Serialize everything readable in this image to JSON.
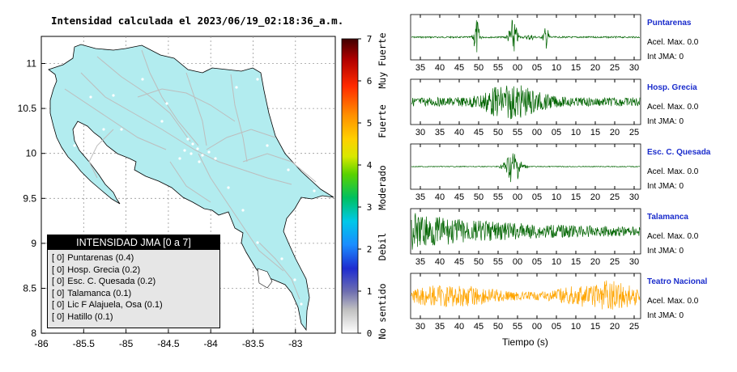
{
  "map": {
    "title": "Intensidad calculada el 2023/06/19_02:18:36_a.m.",
    "x_ticks": [
      "-86",
      "-85.5",
      "-85",
      "-84.5",
      "-84",
      "-83.5",
      "-83"
    ],
    "y_ticks": [
      "11",
      "10.5",
      "10",
      "9.5",
      "9",
      "8.5",
      "8"
    ],
    "colors": {
      "land": "#b2ecef",
      "roads": "#bdbdbd",
      "border": "#000000"
    }
  },
  "legend": {
    "title": "INTENSIDAD JMA [0 a 7]",
    "items": [
      {
        "level": "[ 0]",
        "label": "Puntarenas (0.4)"
      },
      {
        "level": "[ 0]",
        "label": "Hosp. Grecia (0.2)"
      },
      {
        "level": "[ 0]",
        "label": "Esc. C. Quesada (0.2)"
      },
      {
        "level": "[ 0]",
        "label": "Talamanca (0.1)"
      },
      {
        "level": "[ 0]",
        "label": "Lic F Alajuela, Osa (0.1)"
      },
      {
        "level": "[ 0]",
        "label": "Hatillo (0.1)"
      }
    ]
  },
  "colorbar": {
    "ticks": [
      "0",
      "1",
      "2",
      "3",
      "4",
      "5",
      "6",
      "7"
    ],
    "labels": [
      "No sentido",
      "Debil",
      "Moderado",
      "Fuerte",
      "Muy Fuerte"
    ]
  },
  "stations": [
    {
      "name": "Puntarenas",
      "acel": "Acel. Max. 0.0",
      "int": "Int JMA: 0",
      "color": "#006400",
      "ticks": [
        "35",
        "40",
        "45",
        "50",
        "55",
        "00",
        "05",
        "10",
        "15",
        "20",
        "25",
        "30"
      ],
      "profile": "bursts"
    },
    {
      "name": "Hosp. Grecia",
      "acel": "Acel. Max. 0.0",
      "int": "Int JMA: 0",
      "color": "#006400",
      "ticks": [
        "30",
        "35",
        "40",
        "45",
        "50",
        "55",
        "00",
        "05",
        "10",
        "15",
        "20",
        "25"
      ],
      "profile": "broad"
    },
    {
      "name": "Esc. C. Quesada",
      "acel": "Acel. Max. 0.0",
      "int": "Int JMA: 0",
      "color": "#006400",
      "ticks": [
        "35",
        "40",
        "45",
        "50",
        "55",
        "00",
        "05",
        "10",
        "15",
        "20",
        "25",
        "30"
      ],
      "profile": "single"
    },
    {
      "name": "Talamanca",
      "acel": "Acel. Max. 0.0",
      "int": "Int JMA: 0",
      "color": "#006400",
      "ticks": [
        "35",
        "40",
        "45",
        "50",
        "55",
        "00",
        "05",
        "10",
        "15",
        "20",
        "25",
        "30"
      ],
      "profile": "decay"
    },
    {
      "name": "Teatro Nacional",
      "acel": "Acel. Max. 0.0",
      "int": "Int JMA: 0",
      "color": "#ffa500",
      "ticks": [
        "30",
        "35",
        "40",
        "45",
        "50",
        "55",
        "00",
        "05",
        "10",
        "15",
        "20",
        "25"
      ],
      "profile": "noise"
    }
  ],
  "xlabel": "Tiempo (s)"
}
